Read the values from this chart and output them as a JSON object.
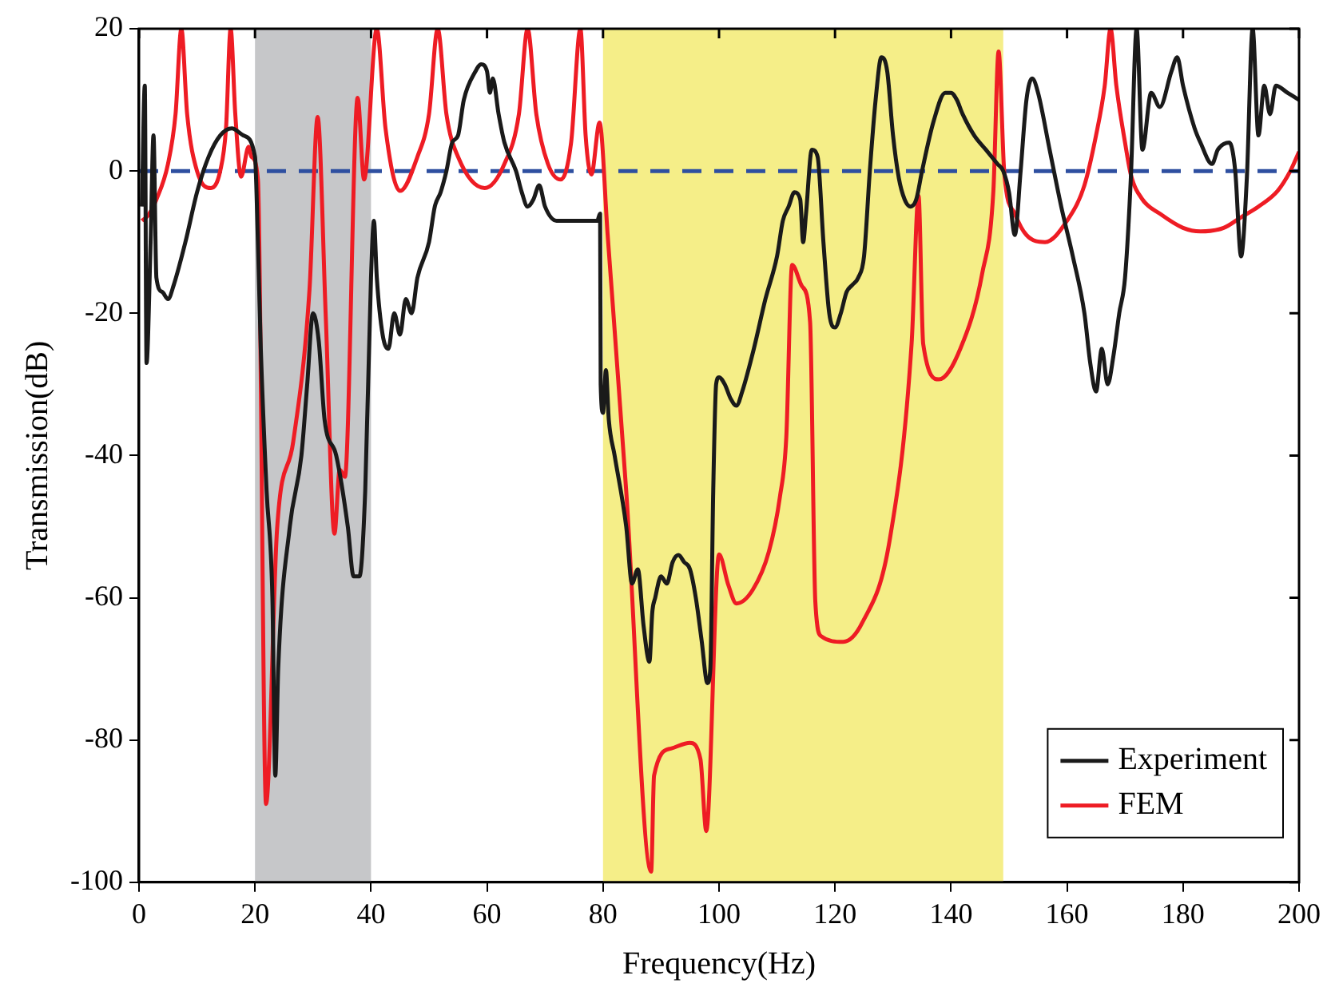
{
  "chart_data": {
    "type": "line",
    "xlabel": "Frequency(Hz)",
    "ylabel": "Transmission(dB)",
    "xlim": [
      0,
      200
    ],
    "xticks": [
      0,
      20,
      40,
      60,
      80,
      100,
      120,
      140,
      160,
      180,
      200
    ],
    "ylim": [
      -100,
      20
    ],
    "yticks": [
      -100,
      -80,
      -60,
      -40,
      -20,
      0,
      20
    ],
    "grid": false,
    "legend": "bottom right",
    "marker": "none",
    "line_style": "solid",
    "series": [
      {
        "name": "Experiment",
        "color": "#1a1a1a",
        "x": [
          0.5,
          1,
          1.3,
          2,
          2.5,
          3,
          4,
          5,
          6,
          8,
          10,
          12,
          14,
          16,
          18,
          20,
          20.5,
          21,
          22,
          23,
          23.5,
          24,
          26,
          28,
          29,
          30,
          31,
          32,
          34,
          36,
          37,
          38,
          39,
          40,
          40.5,
          41,
          42,
          43,
          44,
          45,
          46,
          47,
          48,
          50,
          51,
          52,
          53,
          54,
          55,
          56,
          58,
          59,
          60,
          60.5,
          61,
          62,
          63,
          65,
          66,
          67,
          68,
          69,
          70,
          72,
          74,
          76,
          78,
          79,
          79.5,
          79.6,
          80,
          80.5,
          81,
          82,
          84,
          85,
          86,
          87,
          88,
          88.5,
          89,
          90,
          91,
          92,
          93,
          94,
          95,
          96,
          97,
          98,
          98.5,
          99,
          99.5,
          100,
          101,
          102,
          103,
          104,
          106,
          108,
          110,
          111,
          112,
          113,
          114,
          114.5,
          115,
          116,
          117,
          118,
          119,
          120,
          121,
          122,
          123,
          124,
          125,
          126,
          127,
          128,
          129,
          130,
          131,
          132,
          133,
          134,
          135,
          137,
          139,
          140,
          141,
          142,
          144,
          146,
          148,
          149,
          150,
          151,
          152,
          153,
          154,
          155,
          157,
          159,
          161,
          163,
          164,
          165,
          166,
          167,
          168,
          169,
          170,
          171,
          172,
          173,
          174.5,
          176,
          178,
          179,
          180,
          182,
          183,
          185,
          186,
          188,
          189,
          190,
          191,
          192,
          193,
          194,
          195,
          196,
          198,
          200
        ],
        "values": [
          -5,
          12,
          -27,
          -10,
          5,
          -15,
          -17,
          -18,
          -16,
          -10,
          -3,
          2,
          5,
          6,
          5,
          2,
          -10,
          -25,
          -45,
          -60,
          -85,
          -70,
          -50,
          -40,
          -30,
          -20,
          -24,
          -35,
          -40,
          -50,
          -57,
          -57,
          -45,
          -15,
          -7,
          -15,
          -23,
          -25,
          -20,
          -23,
          -18,
          -20,
          -15,
          -10,
          -5,
          -3,
          0,
          4,
          5,
          10,
          14,
          15,
          14,
          11,
          13,
          8,
          4,
          0,
          -3,
          -5,
          -4,
          -2,
          -5,
          -7,
          -7,
          -7,
          -7,
          -7,
          -6,
          -30,
          -34,
          -28,
          -35,
          -40,
          -50,
          -58,
          -56,
          -64,
          -69,
          -62,
          -60,
          -57,
          -58,
          -55,
          -54,
          -55,
          -56,
          -60,
          -66,
          -72,
          -70,
          -45,
          -30,
          -29,
          -30,
          -32,
          -33,
          -31,
          -25,
          -18,
          -12,
          -7,
          -5,
          -3,
          -4,
          -10,
          -6,
          3,
          2,
          -10,
          -20,
          -22,
          -20,
          -17,
          -16,
          -15,
          -12,
          0,
          10,
          16,
          14,
          5,
          -1,
          -4,
          -5,
          -4,
          0,
          7,
          11,
          11,
          10,
          8,
          5,
          3,
          1,
          0,
          -3,
          -9,
          0,
          10,
          13,
          11,
          3,
          -5,
          -12,
          -20,
          -27,
          -31,
          -25,
          -30,
          -26,
          -20,
          -15,
          -1,
          20,
          3,
          11,
          9,
          14,
          16,
          12,
          6,
          4,
          1,
          3,
          4,
          0,
          -12,
          -1,
          20,
          5,
          12,
          8,
          12,
          11,
          10
        ]
      },
      {
        "name": "FEM",
        "color": "#ee1c24",
        "x": [
          0.5,
          1.6,
          3,
          5,
          6.3,
          7.3,
          8.3,
          10,
          12.4,
          14,
          15,
          15.8,
          16.6,
          17.6,
          18.9,
          19.4,
          20.5,
          21.9,
          23.8,
          26.6,
          29.4,
          30.8,
          32.2,
          33.7,
          34.6,
          35.5,
          37.7,
          38.8,
          41,
          42.5,
          45,
          48,
          50,
          51.5,
          53,
          55,
          59.6,
          63,
          65.5,
          67,
          68.5,
          70.5,
          72.7,
          74.5,
          76.1,
          77,
          78,
          79.4,
          80.8,
          84,
          88.3,
          88.8,
          91.7,
          95,
          96.8,
          97.8,
          100,
          101.6,
          103,
          105.8,
          108.6,
          110.5,
          111.6,
          112.6,
          114.3,
          115.7,
          116.6,
          117.6,
          121.4,
          124.7,
          129.4,
          133.2,
          134.4,
          135.2,
          137.9,
          141.6,
          145.4,
          147.3,
          148.2,
          149.2,
          151,
          153,
          156.2,
          160,
          163,
          165,
          166.5,
          167.5,
          168.5,
          170,
          171,
          173,
          176,
          180,
          183,
          187,
          190,
          193,
          196.3,
          198.5,
          200
        ],
        "values": [
          -7,
          -6.2,
          -4,
          1,
          8,
          20,
          8,
          0,
          -2.4,
          0,
          6,
          20,
          8,
          -0.8,
          3.4,
          2,
          -1.2,
          -89,
          -50.4,
          -38,
          -16.6,
          7.6,
          -20.5,
          -51,
          -42,
          -43,
          10.3,
          -1.2,
          20,
          6,
          -2.8,
          2,
          8,
          20,
          8,
          2,
          -2.4,
          1,
          8,
          20,
          8,
          1,
          -1.2,
          4,
          20,
          5,
          -0.5,
          6.8,
          -9,
          -45,
          -98.5,
          -85,
          -81.2,
          -80.4,
          -82.7,
          -92.8,
          -53.9,
          -58.2,
          -60.8,
          -58.9,
          -53.5,
          -45.8,
          -37.4,
          -13.2,
          -16.2,
          -21.2,
          -60.5,
          -65.4,
          -66.2,
          -63.5,
          -52,
          -24.3,
          -3.5,
          -24.3,
          -29.3,
          -25,
          -14.3,
          -2.8,
          16.8,
          -0.5,
          -6,
          -9,
          -10,
          -7,
          -2,
          5,
          12,
          20,
          12,
          4,
          -0.5,
          -4,
          -6,
          -8,
          -8.5,
          -8,
          -6.5,
          -5,
          -2.8,
          0,
          2.7
        ]
      }
    ],
    "ref_lines": [
      {
        "axis": "y",
        "value": 0,
        "color": "#2e4fa0",
        "line_style": "dashed"
      }
    ],
    "bands": [
      {
        "axis": "x",
        "from": 20,
        "to": 40,
        "color": "#c6c7c9"
      },
      {
        "axis": "x",
        "from": 80,
        "to": 149,
        "color": "#f5ee88"
      }
    ]
  }
}
